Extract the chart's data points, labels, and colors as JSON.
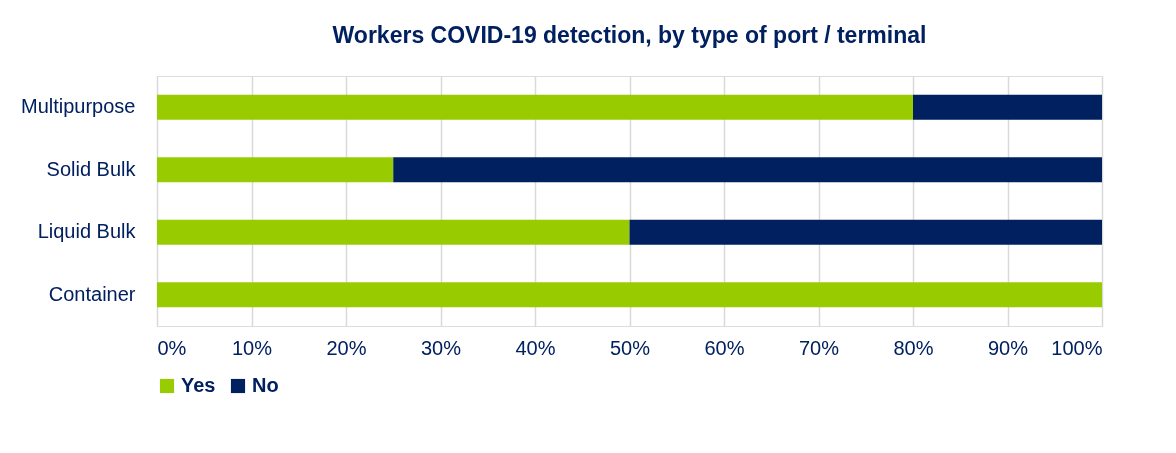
{
  "chart_data": {
    "type": "bar",
    "orientation": "horizontal",
    "stacked": true,
    "title": "Workers COVID-19 detection, by type of port / terminal",
    "categories": [
      "Multipurpose",
      "Solid Bulk",
      "Liquid Bulk",
      "Container"
    ],
    "series": [
      {
        "name": "Yes",
        "color": "#99cc00",
        "values": [
          80,
          25,
          50,
          100
        ]
      },
      {
        "name": "No",
        "color": "#002060",
        "values": [
          20,
          75,
          50,
          0
        ]
      }
    ],
    "xlim": [
      0,
      100
    ],
    "xticks": [
      {
        "value": 0,
        "label": "0%"
      },
      {
        "value": 10,
        "label": "10%"
      },
      {
        "value": 20,
        "label": "20%"
      },
      {
        "value": 30,
        "label": "30%"
      },
      {
        "value": 40,
        "label": "40%"
      },
      {
        "value": 50,
        "label": "50%"
      },
      {
        "value": 60,
        "label": "60%"
      },
      {
        "value": 70,
        "label": "70%"
      },
      {
        "value": 80,
        "label": "80%"
      },
      {
        "value": 90,
        "label": "90%"
      },
      {
        "value": 100,
        "label": "100%"
      }
    ],
    "grid": "x",
    "legend": "bottom"
  }
}
